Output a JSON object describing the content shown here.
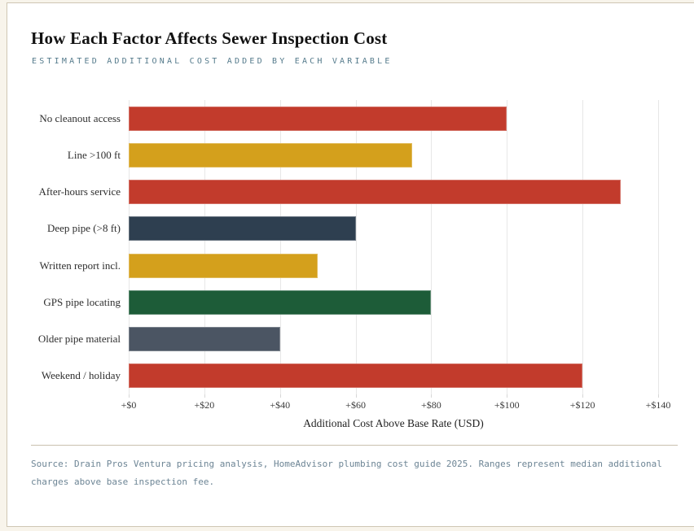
{
  "header": {
    "title": "How Each Factor Affects Sewer Inspection Cost",
    "subtitle": "ESTIMATED ADDITIONAL COST ADDED BY EACH VARIABLE"
  },
  "chart_data": {
    "type": "bar",
    "orientation": "horizontal",
    "title": "How Each Factor Affects Sewer Inspection Cost",
    "subtitle": "ESTIMATED ADDITIONAL COST ADDED BY EACH VARIABLE",
    "categories": [
      "No cleanout access",
      "Line >100 ft",
      "After-hours service",
      "Deep pipe (>8 ft)",
      "Written report incl.",
      "GPS pipe locating",
      "Older pipe material",
      "Weekend / holiday"
    ],
    "values": [
      100,
      75,
      130,
      60,
      50,
      80,
      40,
      120
    ],
    "bar_colors": [
      "#c23b2c",
      "#d4a01c",
      "#c23b2c",
      "#2e3f50",
      "#d4a01c",
      "#1d5c38",
      "#4b5563",
      "#c23b2c"
    ],
    "xlabel": "Additional Cost Above Base Rate (USD)",
    "ylabel": "",
    "xlim": [
      0,
      140
    ],
    "xticks": [
      0,
      20,
      40,
      60,
      80,
      100,
      120,
      140
    ],
    "xtick_labels": [
      "+$0",
      "+$20",
      "+$40",
      "+$60",
      "+$80",
      "+$100",
      "+$120",
      "+$140"
    ],
    "grid": "vertical",
    "legend": "none"
  },
  "colors": {
    "page_background": "#f8f4eb",
    "card_background": "#ffffff",
    "card_border": "#cfc6b4",
    "subtitle_color": "#557b8c",
    "gridline_color": "#e7e7e7",
    "source_color": "#6d8595"
  },
  "footer": {
    "source_text": "Source: Drain Pros Ventura pricing analysis, HomeAdvisor plumbing cost guide 2025. Ranges represent median additional charges above base inspection fee."
  }
}
